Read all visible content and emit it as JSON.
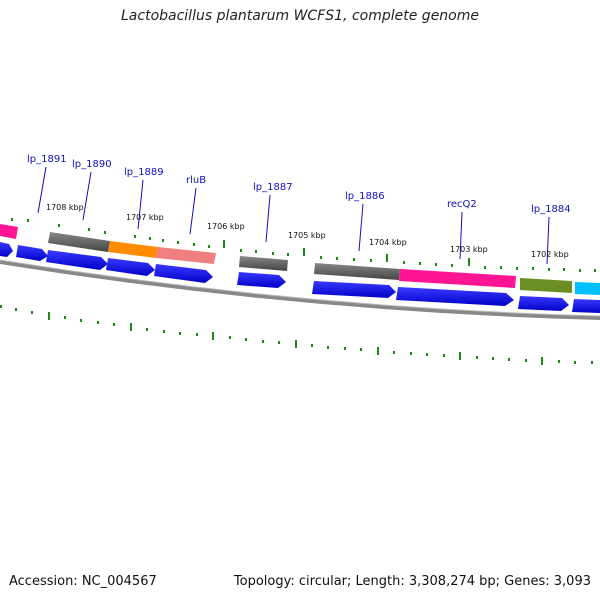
{
  "title": "Lactobacillus plantarum WCFS1, complete genome",
  "footer": {
    "accession": "Accession: NC_004567",
    "topology": "Topology: circular; Length: 3,308,274 bp; Genes: 3,093"
  },
  "colors": {
    "cds": "#0000ee",
    "gene_gray": "#555555",
    "orange": "#ff8c00",
    "salmon": "#f08080",
    "magenta": "#ff1493",
    "olive": "#6b8e23",
    "cyan": "#00bfff",
    "backbone": "#888888",
    "tick": "#1a8a1a",
    "label": "#1010c0"
  },
  "gene_labels": [
    "lp_1891",
    "lp_1890",
    "lp_1889",
    "rluB",
    "lp_1887",
    "lp_1886",
    "recQ2",
    "lp_1884"
  ],
  "kbp_labels": [
    "1708 kbp",
    "1707 kbp",
    "1706 kbp",
    "1705 kbp",
    "1704 kbp",
    "1703 kbp",
    "1702 kbp"
  ]
}
